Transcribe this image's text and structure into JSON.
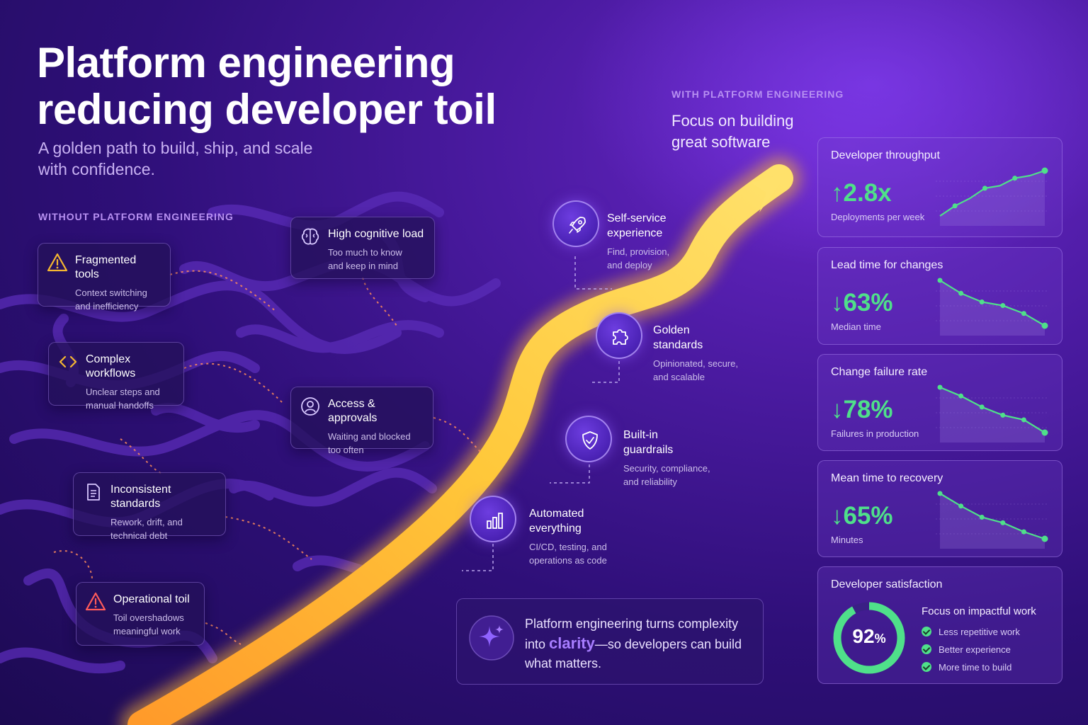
{
  "header": {
    "title_line1": "Platform engineering",
    "title_line2": "reducing developer toil",
    "subtitle_line1": "A golden path to build, ship, and scale",
    "subtitle_line2": "with confidence."
  },
  "without": {
    "label": "WITHOUT PLATFORM ENGINEERING",
    "cards": [
      {
        "title": "Fragmented tools",
        "desc1": "Context switching",
        "desc2": "and inefficiency",
        "icon": "warning-icon"
      },
      {
        "title": "High cognitive load",
        "desc1": "Too much to know",
        "desc2": "and keep in mind",
        "icon": "brain-icon"
      },
      {
        "title": "Complex workflows",
        "desc1": "Unclear steps and",
        "desc2": "manual handoffs",
        "icon": "code-brackets-icon"
      },
      {
        "title": "Access & approvals",
        "desc1": "Waiting and blocked",
        "desc2": "too often",
        "icon": "user-icon"
      },
      {
        "title": "Inconsistent standards",
        "desc1": "Rework, drift, and",
        "desc2": "technical debt",
        "icon": "document-icon"
      },
      {
        "title": "Operational toil",
        "desc1": "Toil overshadows",
        "desc2": "meaningful work",
        "icon": "alert-triangle-icon"
      }
    ]
  },
  "with": {
    "label": "WITH PLATFORM ENGINEERING",
    "heading_line1": "Focus on building",
    "heading_line2": "great software",
    "steps": [
      {
        "title1": "Self-service",
        "title2": "experience",
        "desc1": "Find, provision,",
        "desc2": "and deploy",
        "icon": "rocket-icon"
      },
      {
        "title1": "Golden",
        "title2": "standards",
        "desc1": "Opinionated, secure,",
        "desc2": "and scalable",
        "icon": "puzzle-icon"
      },
      {
        "title1": "Built-in",
        "title2": "guardrails",
        "desc1": "Security, compliance,",
        "desc2": "and reliability",
        "icon": "shield-check-icon"
      },
      {
        "title1": "Automated",
        "title2": "everything",
        "desc1": "CI/CD, testing, and",
        "desc2": "operations as code",
        "icon": "bar-chart-icon"
      }
    ]
  },
  "quote": {
    "line1": "Platform engineering turns complexity",
    "line2_pre": "into",
    "line2_highlight": "clarity",
    "line2_post": "—so developers can build",
    "line3": "what matters.",
    "icon": "sparkle-icon"
  },
  "metrics": [
    {
      "title": "Developer throughput",
      "arrow": "↑",
      "value": "2.8x",
      "sub": "Deployments per week",
      "trend": "up",
      "points": [
        1,
        1.4,
        1.7,
        2.1,
        2.2,
        2.5,
        2.6,
        2.8
      ]
    },
    {
      "title": "Lead time for changes",
      "arrow": "↓",
      "value": "63%",
      "sub": "Median time",
      "trend": "down",
      "points": [
        100,
        82,
        70,
        65,
        54,
        37
      ]
    },
    {
      "title": "Change failure rate",
      "arrow": "↓",
      "value": "78%",
      "sub": "Failures in production",
      "trend": "down",
      "points": [
        100,
        85,
        66,
        52,
        44,
        22
      ]
    },
    {
      "title": "Mean time to recovery",
      "arrow": "↓",
      "value": "65%",
      "sub": "Minutes",
      "trend": "down",
      "points": [
        100,
        82,
        66,
        58,
        45,
        35
      ]
    }
  ],
  "satisfaction": {
    "title": "Developer satisfaction",
    "value": "92",
    "unit": "%",
    "percent": 92,
    "focus_title": "Focus on impactful work",
    "items": [
      "Less repetitive work",
      "Better experience",
      "More time to build"
    ]
  },
  "colors": {
    "accent_green": "#4fe08a",
    "road_yellow": "#ffc83a",
    "label_purple": "#b891f2",
    "warning_yellow": "#f5b731",
    "alert_red": "#ff5b5b"
  }
}
